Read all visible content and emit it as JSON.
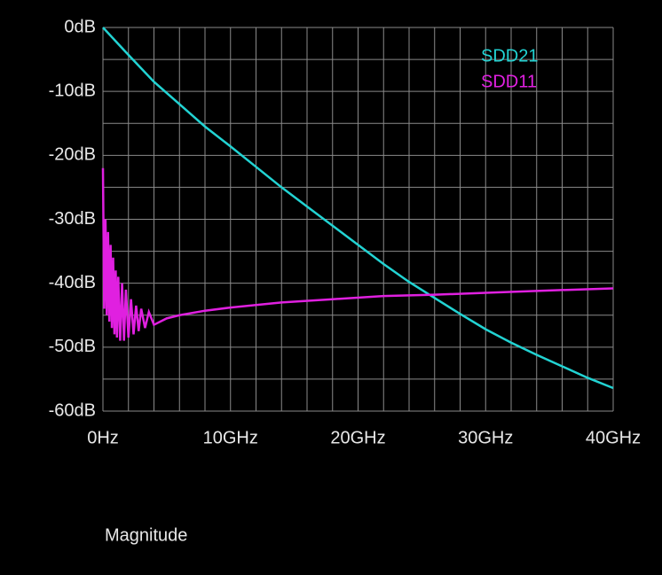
{
  "chart_data": {
    "type": "line",
    "xlim": [
      0,
      40
    ],
    "ylim": [
      -60,
      0
    ],
    "xticks": [
      {
        "value": 0,
        "label": "0Hz"
      },
      {
        "value": 10,
        "label": "10GHz"
      },
      {
        "value": 20,
        "label": "20GHz"
      },
      {
        "value": 30,
        "label": "30GHz"
      },
      {
        "value": 40,
        "label": "40GHz"
      }
    ],
    "yticks": [
      {
        "value": 0,
        "label": "0dB"
      },
      {
        "value": -10,
        "label": "-10dB"
      },
      {
        "value": -20,
        "label": "-20dB"
      },
      {
        "value": -30,
        "label": "-30dB"
      },
      {
        "value": -40,
        "label": "-40dB"
      },
      {
        "value": -50,
        "label": "-50dB"
      },
      {
        "value": -60,
        "label": "-60dB"
      }
    ],
    "xminorticks": [
      2,
      4,
      6,
      8,
      12,
      14,
      16,
      18,
      22,
      24,
      26,
      28,
      32,
      34,
      36,
      38
    ],
    "yminorticks": [
      -5,
      -15,
      -25,
      -35,
      -45,
      -55
    ],
    "grid": true,
    "series": [
      {
        "name": "SDD21",
        "color": "#22d3d3",
        "x": [
          0,
          2,
          4,
          6,
          8,
          10,
          12,
          14,
          16,
          18,
          20,
          22,
          24,
          26,
          28,
          30,
          32,
          34,
          36,
          38,
          40
        ],
        "values": [
          0,
          -4.3,
          -8.5,
          -12,
          -15.5,
          -18.6,
          -21.8,
          -25,
          -28,
          -31,
          -34,
          -37,
          -39.8,
          -42.3,
          -44.8,
          -47.2,
          -49.3,
          -51.2,
          -53,
          -54.8,
          -56.4
        ]
      },
      {
        "name": "SDD11",
        "color": "#e020e0",
        "x": [
          0,
          0.1,
          0.2,
          0.3,
          0.4,
          0.5,
          0.6,
          0.7,
          0.8,
          0.9,
          1,
          1.1,
          1.2,
          1.35,
          1.5,
          1.65,
          1.8,
          2,
          2.2,
          2.4,
          2.6,
          2.8,
          3,
          3.3,
          3.6,
          4,
          5,
          6,
          8,
          10,
          14,
          18,
          22,
          26,
          30,
          34,
          40
        ],
        "values": [
          -22,
          -44,
          -30,
          -45,
          -32,
          -46,
          -34,
          -47,
          -36,
          -48,
          -38,
          -48.5,
          -39,
          -49,
          -40,
          -49,
          -41,
          -48.5,
          -42.5,
          -48,
          -43.5,
          -47.5,
          -44,
          -47,
          -44.5,
          -46.5,
          -45.5,
          -45,
          -44.3,
          -43.8,
          -43,
          -42.5,
          -42,
          -41.8,
          -41.5,
          -41.2,
          -40.8
        ]
      }
    ],
    "footer": "Magnitude"
  }
}
